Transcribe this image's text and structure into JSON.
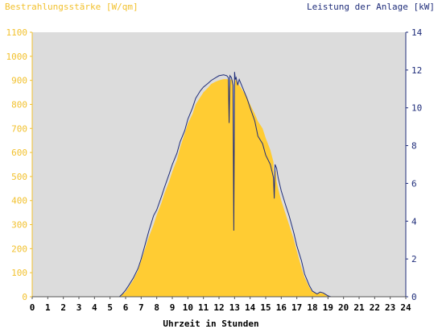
{
  "chart_data": {
    "type": "area",
    "left_axis_label": "Bestrahlungsstärke [W/qm]",
    "right_axis_label": "Leistung der Anlage [kW]",
    "xlabel": "Uhrzeit in Stunden",
    "xlim": [
      0,
      24
    ],
    "x_ticks": [
      "0",
      "1",
      "2",
      "3",
      "4",
      "5",
      "6",
      "7",
      "8",
      "9",
      "10",
      "11",
      "12",
      "13",
      "14",
      "15",
      "16",
      "17",
      "18",
      "19",
      "20",
      "21",
      "22",
      "23",
      "24"
    ],
    "ylim_left": [
      0,
      1100
    ],
    "left_ticks": [
      "0",
      "100",
      "200",
      "300",
      "400",
      "500",
      "600",
      "700",
      "800",
      "900",
      "1000",
      "1100"
    ],
    "ylim_right": [
      0,
      14
    ],
    "right_ticks": [
      "0",
      "2",
      "4",
      "6",
      "8",
      "10",
      "12",
      "14"
    ],
    "colors": {
      "plot_background": "#dcdcdc",
      "irradiance_fill": "#ffcc33",
      "power_line": "#1f2d7a",
      "left_axis_text": "#f2c12e",
      "right_axis_text": "#1f2d7a"
    },
    "series": [
      {
        "name": "Bestrahlungsstärke [W/qm]",
        "axis": "left",
        "render": "area",
        "x": [
          0,
          5.6,
          5.8,
          6.0,
          6.2,
          6.5,
          6.8,
          7.0,
          7.3,
          7.5,
          7.8,
          8.0,
          8.3,
          8.5,
          8.8,
          9.0,
          9.3,
          9.5,
          9.8,
          10.0,
          10.3,
          10.5,
          10.8,
          11.0,
          11.3,
          11.5,
          11.8,
          12.0,
          12.3,
          12.5,
          12.6,
          12.65,
          12.7,
          12.8,
          12.9,
          12.95,
          13.0,
          13.05,
          13.1,
          13.2,
          13.3,
          13.5,
          13.8,
          14.0,
          14.3,
          14.5,
          14.8,
          15.0,
          15.3,
          15.5,
          15.55,
          15.6,
          15.65,
          15.7,
          15.8,
          16.0,
          16.3,
          16.5,
          16.8,
          17.0,
          17.3,
          17.5,
          17.8,
          18.0,
          18.3,
          18.5,
          18.7,
          18.9,
          19.0,
          19.1,
          19.2,
          19.3,
          19.5,
          24
        ],
        "y": [
          0,
          0,
          10,
          20,
          40,
          70,
          110,
          150,
          210,
          250,
          300,
          340,
          390,
          430,
          480,
          520,
          570,
          620,
          680,
          720,
          760,
          800,
          830,
          850,
          870,
          885,
          895,
          900,
          905,
          905,
          903,
          860,
          900,
          905,
          900,
          300,
          880,
          905,
          900,
          890,
          880,
          860,
          830,
          800,
          760,
          730,
          700,
          660,
          610,
          560,
          440,
          530,
          520,
          480,
          450,
          400,
          340,
          300,
          240,
          190,
          120,
          80,
          40,
          20,
          12,
          16,
          14,
          6,
          3,
          1,
          0,
          0,
          0,
          0
        ]
      },
      {
        "name": "Leistung der Anlage [kW]",
        "axis": "right",
        "render": "line",
        "x": [
          0,
          5.6,
          5.8,
          6.0,
          6.2,
          6.5,
          6.8,
          7.0,
          7.3,
          7.5,
          7.8,
          8.0,
          8.3,
          8.5,
          8.8,
          9.0,
          9.3,
          9.5,
          9.8,
          10.0,
          10.3,
          10.5,
          10.8,
          11.0,
          11.3,
          11.5,
          11.8,
          12.0,
          12.3,
          12.5,
          12.6,
          12.65,
          12.7,
          12.8,
          12.9,
          12.95,
          13.0,
          13.05,
          13.1,
          13.2,
          13.3,
          13.5,
          13.8,
          14.0,
          14.3,
          14.5,
          14.8,
          15.0,
          15.3,
          15.5,
          15.55,
          15.6,
          15.65,
          15.7,
          15.8,
          16.0,
          16.3,
          16.5,
          16.8,
          17.0,
          17.3,
          17.5,
          17.8,
          18.0,
          18.3,
          18.5,
          18.7,
          18.9,
          19.0,
          19.1,
          19.2,
          19.3,
          19.5,
          24
        ],
        "y": [
          0,
          0,
          0.15,
          0.35,
          0.6,
          1.0,
          1.5,
          2.0,
          2.9,
          3.5,
          4.3,
          4.6,
          5.3,
          5.8,
          6.5,
          7.0,
          7.6,
          8.2,
          8.8,
          9.4,
          10.0,
          10.5,
          10.9,
          11.1,
          11.3,
          11.45,
          11.6,
          11.7,
          11.75,
          11.7,
          11.6,
          9.2,
          11.7,
          11.6,
          11.2,
          3.5,
          11.9,
          11.5,
          11.6,
          11.2,
          11.5,
          11.1,
          10.5,
          10.0,
          9.3,
          8.5,
          8.1,
          7.5,
          7.0,
          6.3,
          5.2,
          7.0,
          6.9,
          6.8,
          6.3,
          5.6,
          4.8,
          4.3,
          3.4,
          2.7,
          1.9,
          1.2,
          0.6,
          0.3,
          0.15,
          0.25,
          0.2,
          0.1,
          0.05,
          0.02,
          0,
          0,
          0,
          0
        ]
      }
    ]
  }
}
